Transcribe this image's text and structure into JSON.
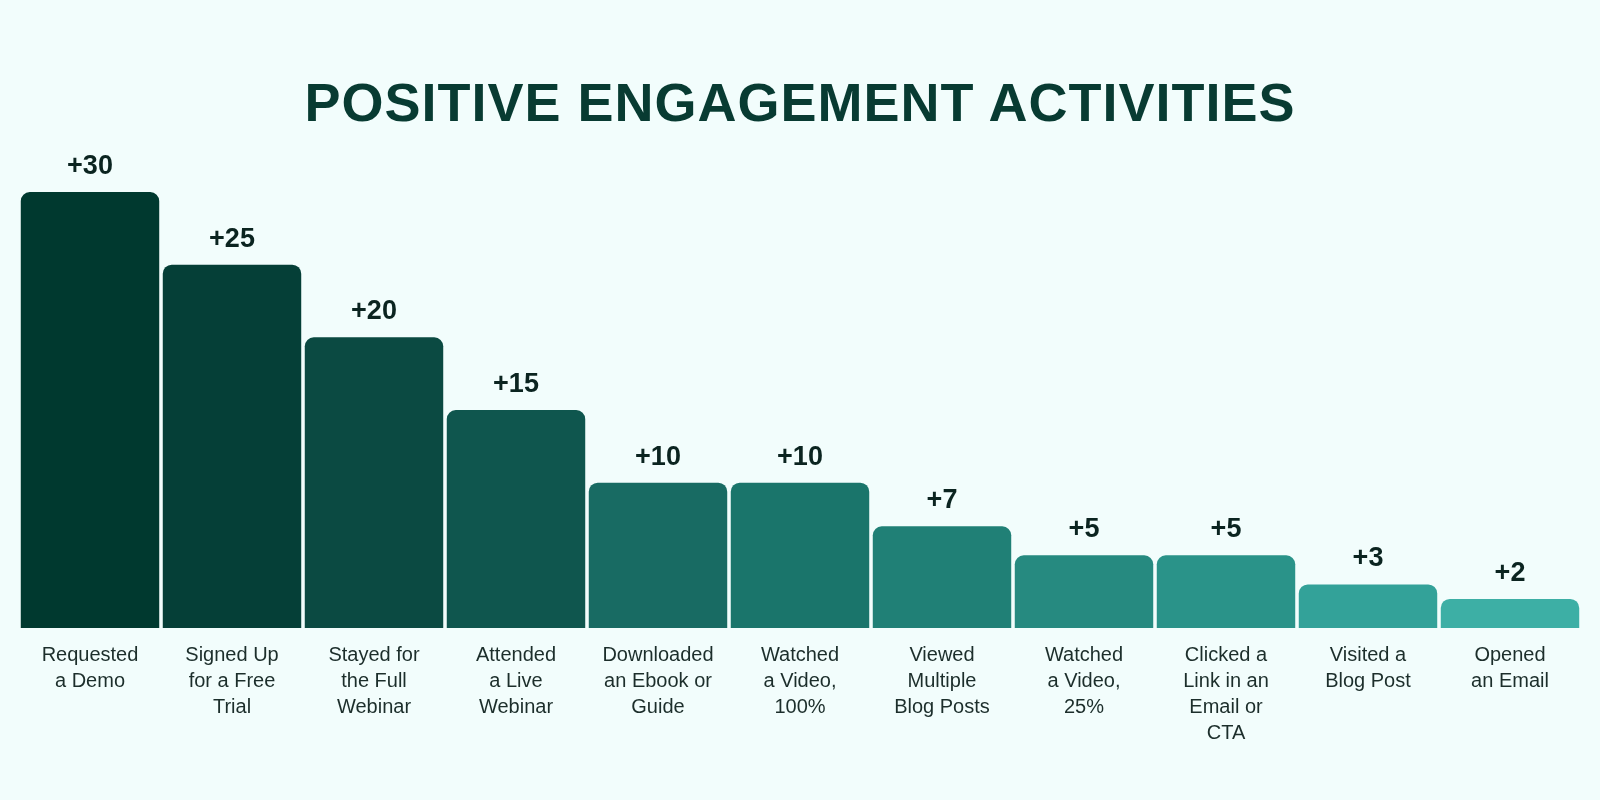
{
  "chart_data": {
    "type": "bar",
    "title": "POSITIVE ENGAGEMENT ACTIVITIES",
    "categories": [
      "Requested\na Demo",
      "Signed Up\nfor a Free\nTrial",
      "Stayed for\nthe Full\nWebinar",
      "Attended\na Live\nWebinar",
      "Downloaded\nan Ebook or\nGuide",
      "Watched\na Video,\n100%",
      "Viewed\nMultiple\nBlog Posts",
      "Watched\na Video,\n25%",
      "Clicked a\nLink in an\nEmail or\nCTA",
      "Visited a\nBlog Post",
      "Opened\nan Email"
    ],
    "values": [
      30,
      25,
      20,
      15,
      10,
      10,
      7,
      5,
      5,
      3,
      2
    ],
    "value_labels": [
      "+30",
      "+25",
      "+20",
      "+15",
      "+10",
      "+10",
      "+7",
      "+5",
      "+5",
      "+3",
      "+2"
    ],
    "colors": [
      "#00392f",
      "#053f37",
      "#0b4a42",
      "#0f564e",
      "#186b63",
      "#1a756b",
      "#208076",
      "#268a80",
      "#2a9389",
      "#33a299",
      "#3dafa5"
    ],
    "data_labels": true,
    "grid": false,
    "tick_labels": "x"
  }
}
